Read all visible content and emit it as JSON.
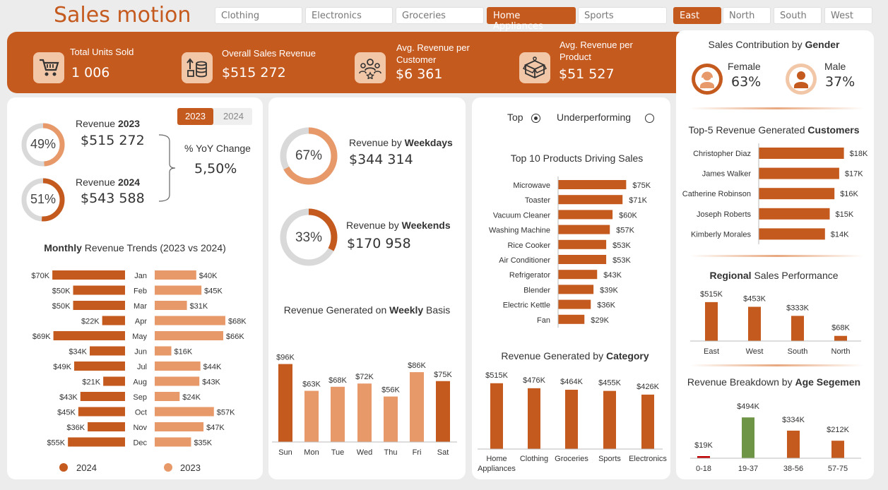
{
  "title": "Sales motion",
  "categories": [
    "Clothing",
    "Electronics",
    "Groceries",
    "Home Appliances",
    "Sports"
  ],
  "active_category": "Home Appliances",
  "regions": [
    "East",
    "North",
    "South",
    "West"
  ],
  "active_region": "East",
  "kpis": [
    {
      "label": "Total Units Sold",
      "value": "1 006",
      "icon": "cart-icon"
    },
    {
      "label": "Overall Sales Revenue",
      "value": "$515 272",
      "icon": "coins-icon"
    },
    {
      "label": "Avg. Revenue per Customer",
      "value": "$6 361",
      "icon": "customers-icon"
    },
    {
      "label": "Avg. Revenue per Product",
      "value": "$51 527",
      "icon": "box-icon"
    }
  ],
  "revenue_compare": {
    "years": [
      "2023",
      "2024"
    ],
    "active_year": "2023",
    "r2023": {
      "prefix": "Revenue ",
      "year": "2023",
      "value": "$515 272",
      "pct": "49%",
      "pct_value": 49
    },
    "r2024": {
      "prefix": "Revenue ",
      "year": "2024",
      "value": "$543 588",
      "pct": "51%",
      "pct_value": 51
    },
    "yoy_label": "% YoY Change",
    "yoy_value": "5,50%"
  },
  "weekdays": {
    "title_prefix": "Revenue by ",
    "title_bold": "Weekdays",
    "value": "$344 314",
    "pct": "67%",
    "pct_value": 67
  },
  "weekends": {
    "title_prefix": "Revenue by ",
    "title_bold": "Weekends",
    "value": "$170 958",
    "pct": "33%",
    "pct_value": 33
  },
  "toggle": {
    "top": "Top",
    "under": "Underperforming",
    "selected": "Top"
  },
  "gender": {
    "title_prefix": "Sales Contribution by ",
    "title_bold": "Gender",
    "female": {
      "label": "Female",
      "pct": "63%"
    },
    "male": {
      "label": "Male",
      "pct": "37%"
    }
  },
  "colors": {
    "accent": "#c55a1f",
    "light": "#e8996a",
    "green": "#6e9446",
    "red": "#c00000",
    "ring_grey": "#d9d9d9"
  },
  "chart_data": [
    {
      "id": "monthly",
      "type": "bar",
      "title_bold": "Monthly",
      "title_rest": " Revenue Trends (2023 vs 2024)",
      "categories": [
        "Jan",
        "Feb",
        "Mar",
        "Apr",
        "May",
        "Jun",
        "Jul",
        "Aug",
        "Sep",
        "Oct",
        "Nov",
        "Dec"
      ],
      "series": [
        {
          "name": "2024",
          "values": [
            70,
            50,
            50,
            22,
            69,
            34,
            49,
            21,
            43,
            45,
            36,
            55
          ],
          "labels": [
            "$70K",
            "$50K",
            "$50K",
            "$22K",
            "$69K",
            "$34K",
            "$49K",
            "$21K",
            "$43K",
            "$45K",
            "$36K",
            "$55K"
          ]
        },
        {
          "name": "2023",
          "values": [
            40,
            45,
            31,
            68,
            66,
            16,
            44,
            43,
            24,
            57,
            47,
            35
          ],
          "labels": [
            "$40K",
            "$45K",
            "$31K",
            "$68K",
            "$66K",
            "$16K",
            "$44K",
            "$43K",
            "$24K",
            "$57K",
            "$47K",
            "$35K"
          ]
        }
      ]
    },
    {
      "id": "weekly",
      "type": "bar",
      "title_rest": "Revenue Generated on ",
      "title_bold": "Weekly",
      "title_end": " Basis",
      "categories": [
        "Sun",
        "Mon",
        "Tue",
        "Wed",
        "Thu",
        "Fri",
        "Sat"
      ],
      "values": [
        96,
        63,
        68,
        72,
        56,
        86,
        75
      ],
      "labels": [
        "$96K",
        "$63K",
        "$68K",
        "$72K",
        "$56K",
        "$86K",
        "$75K"
      ]
    },
    {
      "id": "top_products",
      "type": "bar",
      "title": "Top 10 Products Driving Sales",
      "categories": [
        "Microwave",
        "Toaster",
        "Vacuum Cleaner",
        "Washing Machine",
        "Rice Cooker",
        "Air Conditioner",
        "Refrigerator",
        "Blender",
        "Electric Kettle",
        "Fan"
      ],
      "values": [
        75,
        71,
        60,
        57,
        53,
        53,
        43,
        39,
        36,
        29
      ],
      "labels": [
        "$75K",
        "$71K",
        "$60K",
        "$57K",
        "$53K",
        "$53K",
        "$43K",
        "$39K",
        "$36K",
        "$29K"
      ]
    },
    {
      "id": "category",
      "type": "bar",
      "title_rest": "Revenue Generated by ",
      "title_bold": "Category",
      "categories": [
        "Home Appliances",
        "Clothing",
        "Groceries",
        "Sports",
        "Electronics"
      ],
      "values": [
        515,
        476,
        464,
        455,
        426
      ],
      "labels": [
        "$515K",
        "$476K",
        "$464K",
        "$455K",
        "$426K"
      ]
    },
    {
      "id": "top_customers",
      "type": "bar",
      "title_rest": "Top-5 Revenue Generated ",
      "title_bold": "Customers",
      "categories": [
        "Christopher Diaz",
        "James Walker",
        "Catherine Robinson",
        "Joseph Roberts",
        "Kimberly Morales"
      ],
      "values": [
        18,
        17,
        16,
        15,
        14
      ],
      "labels": [
        "$18K",
        "$17K",
        "$16K",
        "$15K",
        "$14K"
      ]
    },
    {
      "id": "regional",
      "type": "bar",
      "title_bold": "Regional",
      "title_rest": " Sales Performance",
      "categories": [
        "East",
        "West",
        "South",
        "North"
      ],
      "values": [
        515,
        453,
        333,
        68
      ],
      "labels": [
        "$515K",
        "$453K",
        "$333K",
        "$68K"
      ]
    },
    {
      "id": "age",
      "type": "bar",
      "title_rest": "Revenue Breakdown by ",
      "title_bold": "Age Segemen",
      "categories": [
        "0-18",
        "19-37",
        "38-56",
        "57-75"
      ],
      "values": [
        19,
        494,
        334,
        212
      ],
      "labels": [
        "$19K",
        "$494K",
        "$334K",
        "$212K"
      ],
      "colors": [
        "#c00000",
        "#6e9446",
        "#c55a1f",
        "#c55a1f"
      ]
    }
  ]
}
